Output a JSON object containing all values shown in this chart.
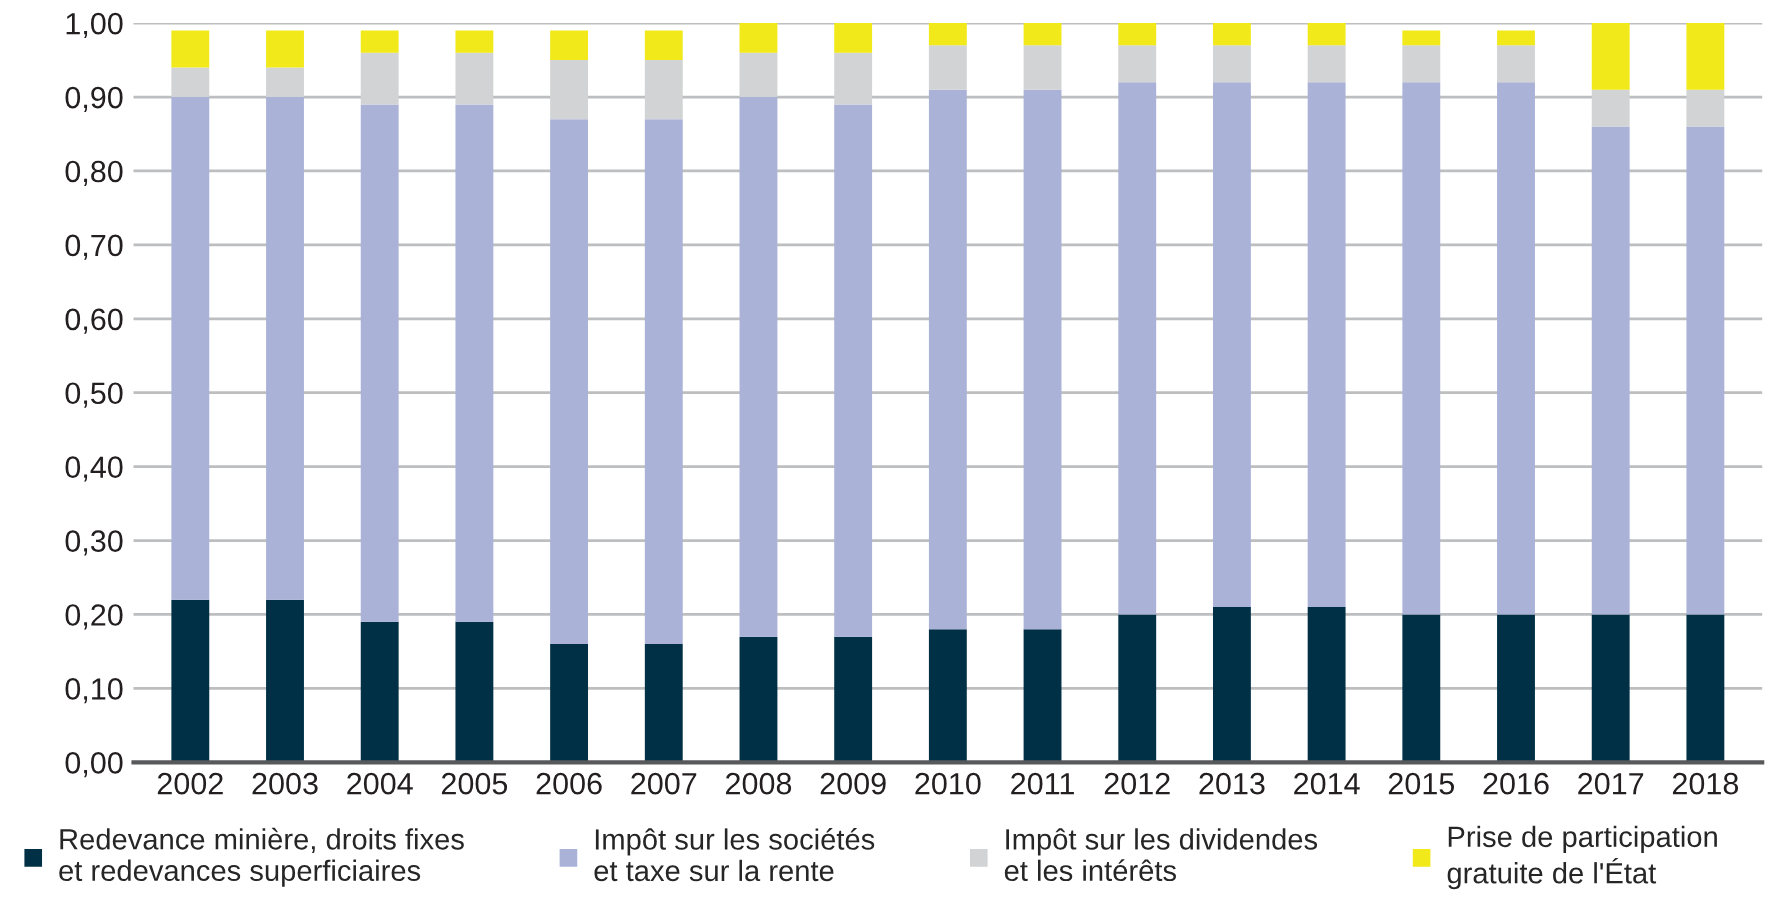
{
  "chart_data": {
    "type": "bar",
    "stacked": true,
    "categories": [
      "2002",
      "2003",
      "2004",
      "2005",
      "2006",
      "2007",
      "2008",
      "2009",
      "2010",
      "2011",
      "2012",
      "2013",
      "2014",
      "2015",
      "2016",
      "2017",
      "2018"
    ],
    "series": [
      {
        "name": "Redevance minière, droits fixes\net redevances superficiaires",
        "color": "#003046",
        "values": [
          0.22,
          0.22,
          0.19,
          0.19,
          0.16,
          0.16,
          0.17,
          0.17,
          0.18,
          0.18,
          0.2,
          0.21,
          0.21,
          0.2,
          0.2,
          0.2,
          0.2
        ]
      },
      {
        "name": "Impôt sur les sociétés\net taxe sur la rente",
        "color": "#aab2d8",
        "values": [
          0.68,
          0.68,
          0.7,
          0.7,
          0.71,
          0.71,
          0.73,
          0.72,
          0.73,
          0.73,
          0.72,
          0.71,
          0.71,
          0.72,
          0.72,
          0.66,
          0.66
        ]
      },
      {
        "name": "Impôt sur les dividendes\net les intérêts",
        "color": "#d1d3d4",
        "values": [
          0.04,
          0.04,
          0.07,
          0.07,
          0.08,
          0.08,
          0.06,
          0.07,
          0.06,
          0.06,
          0.05,
          0.05,
          0.05,
          0.05,
          0.05,
          0.05,
          0.05
        ]
      },
      {
        "name": "Prise de participation\ngratuite de l'État",
        "color": "#f2e91a",
        "values": [
          0.05,
          0.05,
          0.03,
          0.03,
          0.04,
          0.04,
          0.04,
          0.04,
          0.03,
          0.03,
          0.03,
          0.03,
          0.03,
          0.02,
          0.02,
          0.09,
          0.09
        ]
      }
    ],
    "ylim": [
      0,
      1
    ],
    "yticks": [
      {
        "value": 0,
        "label": "0,00"
      },
      {
        "value": 0.1,
        "label": "0,10"
      },
      {
        "value": 0.2,
        "label": "0,20"
      },
      {
        "value": 0.3,
        "label": "0,30"
      },
      {
        "value": 0.4,
        "label": "0,40"
      },
      {
        "value": 0.5,
        "label": "0,50"
      },
      {
        "value": 0.6,
        "label": "0,60"
      },
      {
        "value": 0.7,
        "label": "0,70"
      },
      {
        "value": 0.8,
        "label": "0,80"
      },
      {
        "value": 0.9,
        "label": "0,90"
      },
      {
        "value": 1,
        "label": "1,00"
      }
    ],
    "grid": "y",
    "legend": "bottom"
  }
}
